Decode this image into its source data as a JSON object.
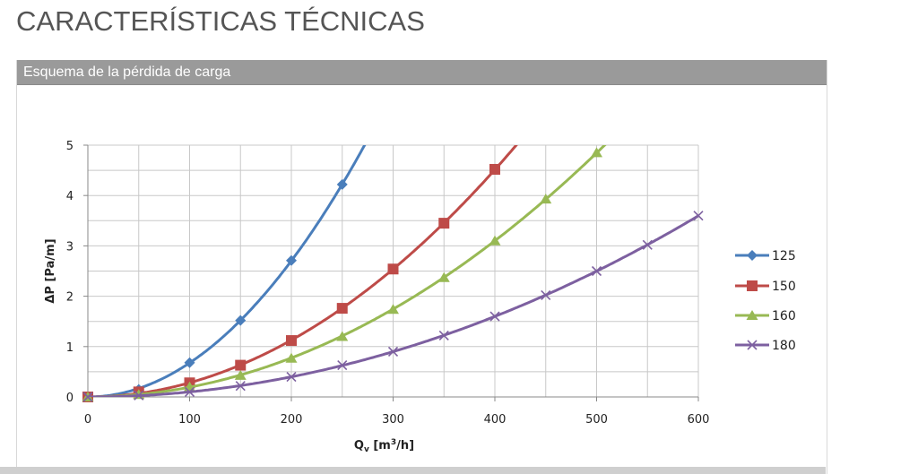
{
  "page": {
    "title": "CARACTERÍSTICAS TÉCNICAS",
    "panel_title": "Esquema de la pérdida de carga"
  },
  "chart_data": {
    "type": "line",
    "title": "",
    "xlabel": "Q",
    "xlabel_sub": "v",
    "xlabel_unit_pre": " [m",
    "xlabel_unit_sup": "3",
    "xlabel_unit_post": "/h]",
    "ylabel": "ΔP [Pa/m]",
    "xlim": [
      0,
      600
    ],
    "ylim": [
      0,
      5
    ],
    "xticks": [
      0,
      100,
      200,
      300,
      400,
      500,
      600
    ],
    "yticks": [
      0,
      1,
      2,
      3,
      4,
      5
    ],
    "grid": true,
    "legend_position": "right",
    "series": [
      {
        "name": "125",
        "color": "#4a7ebb",
        "marker": "diamond",
        "x": [
          0,
          50,
          100,
          150,
          200,
          250
        ],
        "y": [
          0,
          0.15,
          0.68,
          1.52,
          2.71,
          4.22
        ]
      },
      {
        "name": "150",
        "color": "#be4b48",
        "marker": "square",
        "x": [
          0,
          50,
          100,
          150,
          200,
          250,
          300,
          350,
          400
        ],
        "y": [
          0,
          0.1,
          0.28,
          0.63,
          1.12,
          1.76,
          2.54,
          3.45,
          4.52
        ]
      },
      {
        "name": "160",
        "color": "#98b954",
        "marker": "triangle",
        "x": [
          0,
          50,
          100,
          150,
          200,
          250,
          300,
          350,
          400,
          450,
          500
        ],
        "y": [
          0,
          0.05,
          0.2,
          0.43,
          0.77,
          1.2,
          1.74,
          2.37,
          3.1,
          3.93,
          4.85
        ]
      },
      {
        "name": "180",
        "color": "#7d60a0",
        "marker": "x",
        "x": [
          0,
          50,
          100,
          150,
          200,
          250,
          300,
          350,
          400,
          450,
          500,
          550,
          600
        ],
        "y": [
          0,
          0.03,
          0.1,
          0.22,
          0.4,
          0.63,
          0.9,
          1.22,
          1.6,
          2.02,
          2.5,
          3.02,
          3.6
        ]
      }
    ]
  }
}
